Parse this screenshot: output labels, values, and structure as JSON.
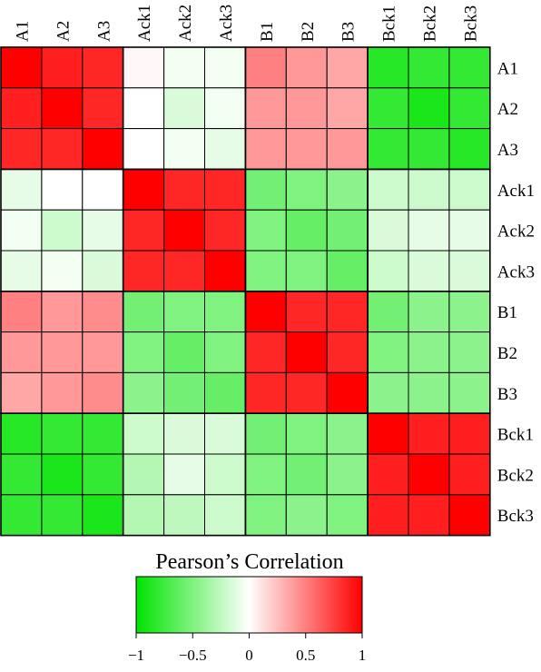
{
  "chart_data": {
    "type": "heatmap",
    "title": "",
    "legend_title": "Pearson’s Correlation",
    "columns": [
      "A1",
      "A2",
      "A3",
      "Ack1",
      "Ack2",
      "Ack3",
      "B1",
      "B2",
      "B3",
      "Bck1",
      "Bck2",
      "Bck3"
    ],
    "rows": [
      "A1",
      "A2",
      "A3",
      "Ack1",
      "Ack2",
      "Ack3",
      "B1",
      "B2",
      "B3",
      "Bck1",
      "Bck2",
      "Bck3"
    ],
    "color_scale": {
      "min": -1,
      "mid": 0,
      "max": 1,
      "low_color": "#00e400",
      "mid_color": "#ffffff",
      "high_color": "#ff0000"
    },
    "legend_ticks": [
      "−1",
      "−0.5",
      "0",
      "0.5",
      "1"
    ],
    "legend_tick_values": [
      -1,
      -0.5,
      0,
      0.5,
      1
    ],
    "values": [
      [
        1.0,
        0.88,
        0.85,
        0.03,
        -0.05,
        -0.05,
        0.5,
        0.4,
        0.35,
        -0.85,
        -0.8,
        -0.8
      ],
      [
        0.88,
        1.0,
        0.85,
        0.0,
        -0.15,
        -0.05,
        0.4,
        0.4,
        0.35,
        -0.8,
        -0.9,
        -0.8
      ],
      [
        0.85,
        0.85,
        1.0,
        0.0,
        -0.05,
        -0.1,
        0.4,
        0.4,
        0.4,
        -0.8,
        -0.8,
        -0.85
      ],
      [
        -0.1,
        0.0,
        0.0,
        1.0,
        0.85,
        0.85,
        -0.55,
        -0.5,
        -0.45,
        -0.2,
        -0.2,
        -0.2
      ],
      [
        -0.05,
        -0.2,
        -0.1,
        0.85,
        1.0,
        0.85,
        -0.5,
        -0.6,
        -0.55,
        -0.15,
        -0.1,
        -0.1
      ],
      [
        -0.1,
        -0.05,
        -0.15,
        0.85,
        0.85,
        1.0,
        -0.5,
        -0.5,
        -0.6,
        -0.2,
        -0.15,
        -0.15
      ],
      [
        0.5,
        0.4,
        0.45,
        -0.55,
        -0.5,
        -0.5,
        1.0,
        0.85,
        0.85,
        -0.55,
        -0.45,
        -0.45
      ],
      [
        0.4,
        0.4,
        0.4,
        -0.5,
        -0.6,
        -0.5,
        0.85,
        1.0,
        0.85,
        -0.5,
        -0.45,
        -0.45
      ],
      [
        0.35,
        0.4,
        0.45,
        -0.45,
        -0.55,
        -0.6,
        0.85,
        0.85,
        1.0,
        -0.45,
        -0.45,
        -0.45
      ],
      [
        -0.85,
        -0.8,
        -0.8,
        -0.2,
        -0.15,
        -0.15,
        -0.55,
        -0.5,
        -0.45,
        1.0,
        0.88,
        0.88
      ],
      [
        -0.8,
        -0.9,
        -0.8,
        -0.3,
        -0.1,
        -0.2,
        -0.5,
        -0.55,
        -0.45,
        0.88,
        1.0,
        0.88
      ],
      [
        -0.8,
        -0.8,
        -0.9,
        -0.3,
        -0.25,
        -0.2,
        -0.5,
        -0.45,
        -0.5,
        0.88,
        0.88,
        1.0
      ]
    ],
    "block_boundaries_after": [
      3,
      6,
      9
    ],
    "grid": true,
    "legend_placement": "bottom-center"
  }
}
